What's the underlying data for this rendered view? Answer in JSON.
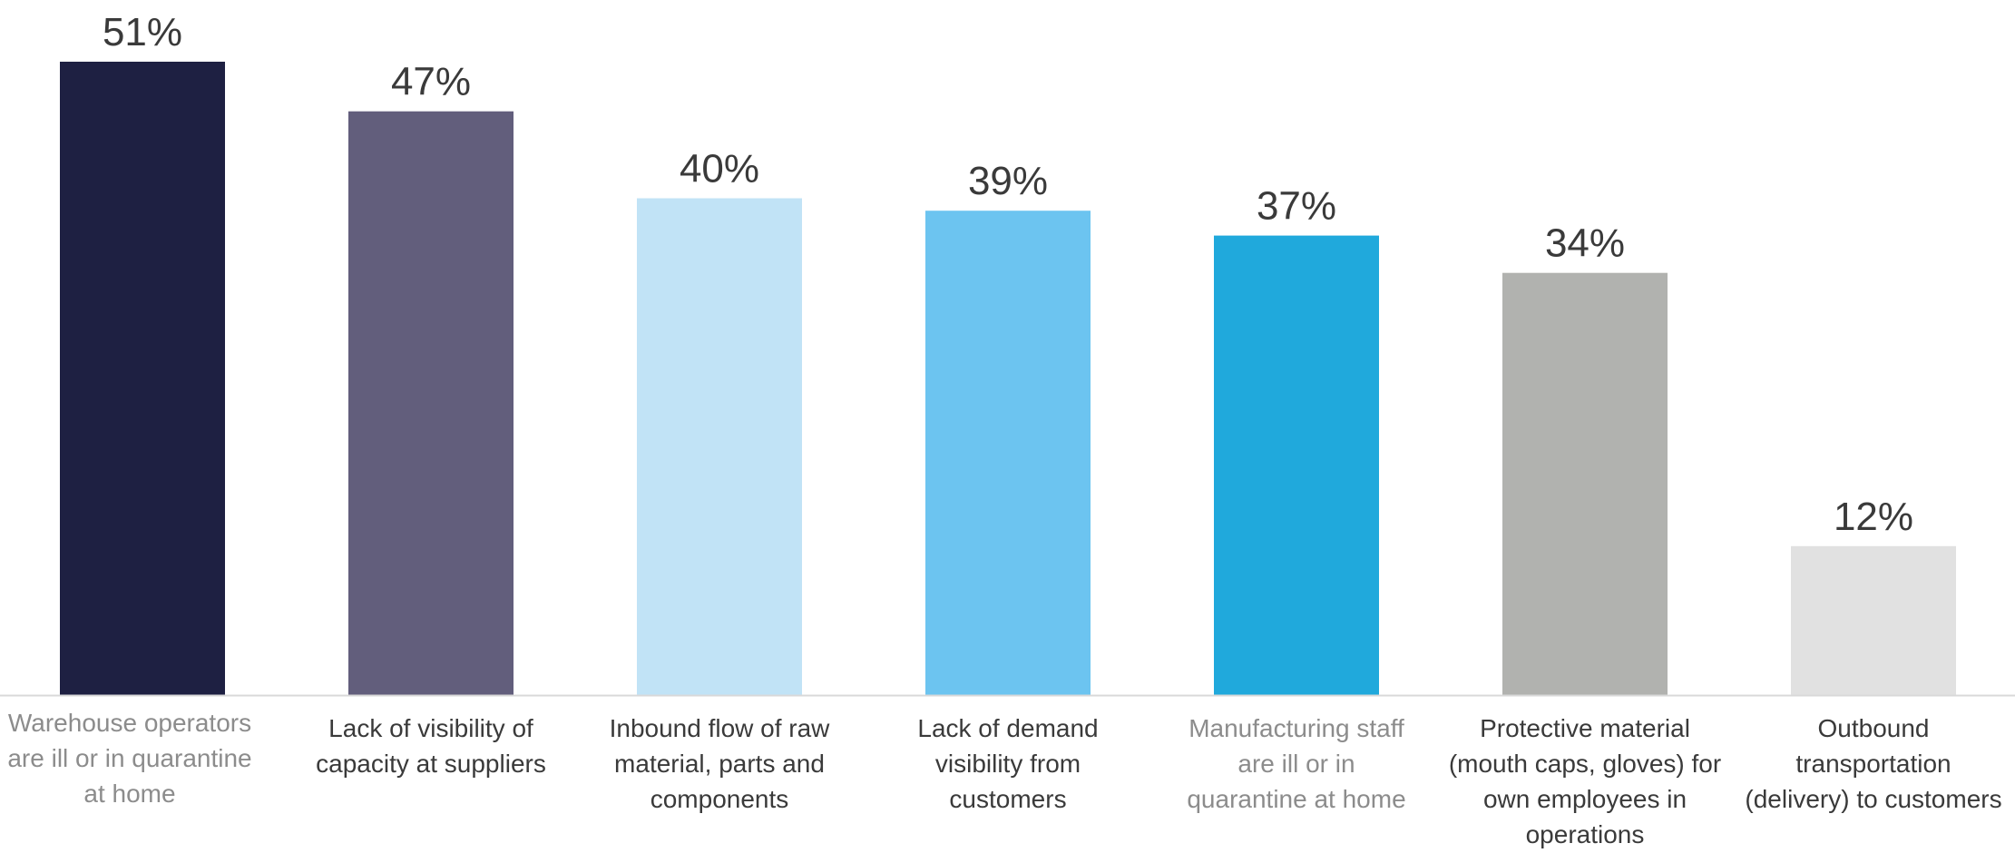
{
  "chart_data": {
    "type": "bar",
    "title": "",
    "xlabel": "",
    "ylabel": "",
    "ylim": [
      0,
      51
    ],
    "value_suffix": "%",
    "grid": false,
    "legend": "none",
    "categories": [
      [
        "Warehouse operators",
        "are ill or in quarantine",
        "at home"
      ],
      [
        "Lack of visibility of",
        "capacity at suppliers"
      ],
      [
        "Inbound flow of raw",
        "material, parts and",
        "components"
      ],
      [
        "Lack of demand",
        "visibility from",
        "customers"
      ],
      [
        "Manufacturing staff",
        "are ill or in",
        "quarantine at home"
      ],
      [
        "Protective material",
        "(mouth caps, gloves) for",
        "own employees in",
        "operations"
      ],
      [
        "Outbound",
        "transportation",
        "(delivery) to customers"
      ]
    ],
    "values": [
      51,
      47,
      40,
      39,
      37,
      34,
      12
    ],
    "colors": [
      "#1e2042",
      "#625e7c",
      "#c1e3f6",
      "#6cc4f0",
      "#20a9dc",
      "#b1b2af",
      "#e1e1e1"
    ],
    "muted_categories": [
      0,
      4
    ]
  }
}
